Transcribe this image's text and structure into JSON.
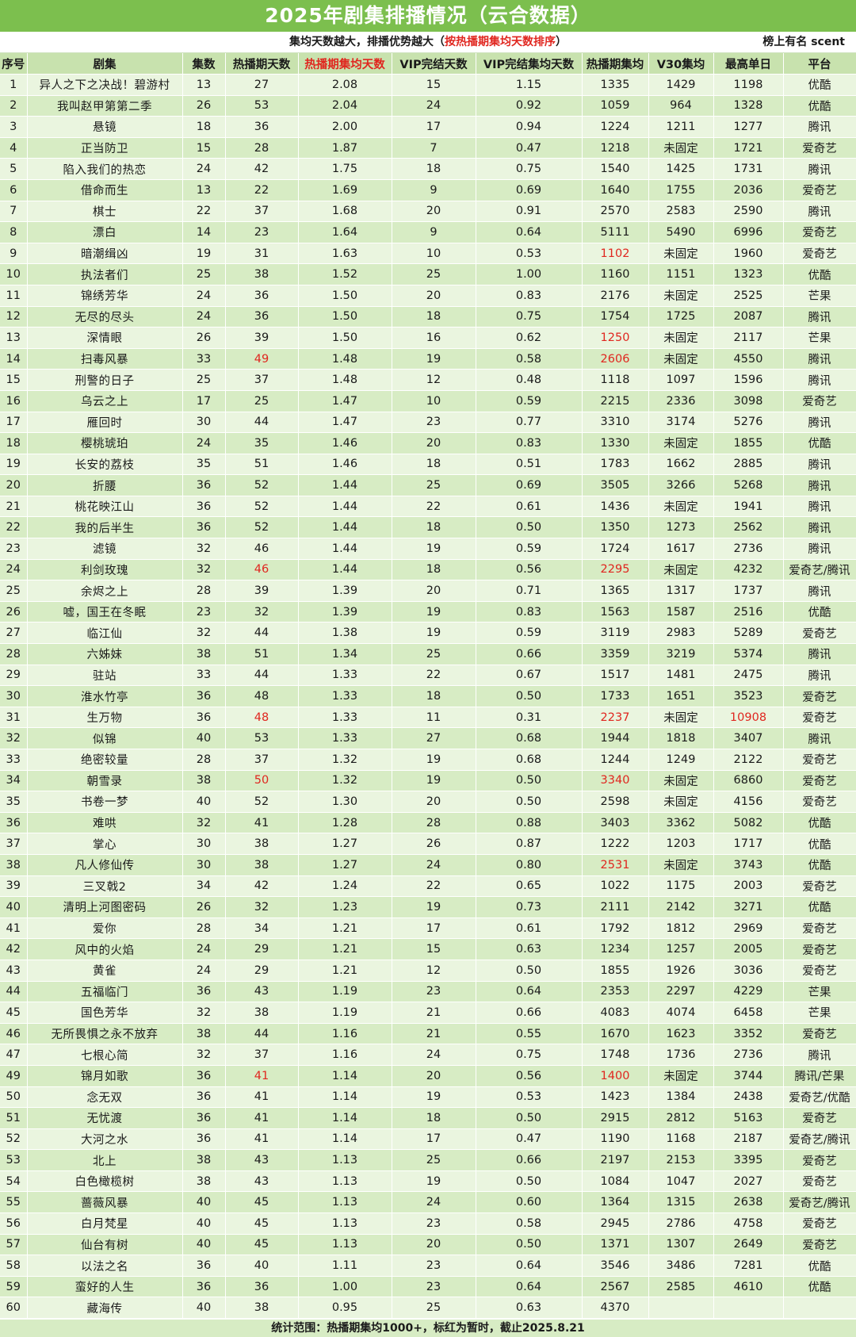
{
  "title": "2025年剧集排播情况（云合数据）",
  "subtitle": {
    "part1": "集均天数越大，排播优势越大（",
    "highlight": "按热播期集均天数排序",
    "part2": "）",
    "right": "榜上有名   scent"
  },
  "headers": [
    "序号",
    "剧集",
    "集数",
    "热播期天数",
    "热播期集均天数",
    "VIP完结天数",
    "VIP完结集均天数",
    "热播期集均",
    "V30集均",
    "最高单日",
    "平台"
  ],
  "highlight_header_index": 4,
  "rows": [
    {
      "c": [
        "1",
        "异人之下之决战！碧游村",
        "13",
        "27",
        "2.08",
        "15",
        "1.15",
        "1335",
        "1429",
        "1198",
        "优酷"
      ]
    },
    {
      "c": [
        "2",
        "我叫赵甲第第二季",
        "26",
        "53",
        "2.04",
        "24",
        "0.92",
        "1059",
        "964",
        "1328",
        "优酷"
      ]
    },
    {
      "c": [
        "3",
        "悬镜",
        "18",
        "36",
        "2.00",
        "17",
        "0.94",
        "1224",
        "1211",
        "1277",
        "腾讯"
      ]
    },
    {
      "c": [
        "4",
        "正当防卫",
        "15",
        "28",
        "1.87",
        "7",
        "0.47",
        "1218",
        "未固定",
        "1721",
        "爱奇艺"
      ]
    },
    {
      "c": [
        "5",
        "陷入我们的热恋",
        "24",
        "42",
        "1.75",
        "18",
        "0.75",
        "1540",
        "1425",
        "1731",
        "腾讯"
      ]
    },
    {
      "c": [
        "6",
        "借命而生",
        "13",
        "22",
        "1.69",
        "9",
        "0.69",
        "1640",
        "1755",
        "2036",
        "爱奇艺"
      ]
    },
    {
      "c": [
        "7",
        "棋士",
        "22",
        "37",
        "1.68",
        "20",
        "0.91",
        "2570",
        "2583",
        "2590",
        "腾讯"
      ]
    },
    {
      "c": [
        "8",
        "漂白",
        "14",
        "23",
        "1.64",
        "9",
        "0.64",
        "5111",
        "5490",
        "6996",
        "爱奇艺"
      ]
    },
    {
      "c": [
        "9",
        "暗潮缉凶",
        "19",
        "31",
        "1.63",
        "10",
        "0.53",
        "1102",
        "未固定",
        "1960",
        "爱奇艺"
      ],
      "red": [
        7
      ]
    },
    {
      "c": [
        "10",
        "执法者们",
        "25",
        "38",
        "1.52",
        "25",
        "1.00",
        "1160",
        "1151",
        "1323",
        "优酷"
      ]
    },
    {
      "c": [
        "11",
        "锦绣芳华",
        "24",
        "36",
        "1.50",
        "20",
        "0.83",
        "2176",
        "未固定",
        "2525",
        "芒果"
      ]
    },
    {
      "c": [
        "12",
        "无尽的尽头",
        "24",
        "36",
        "1.50",
        "18",
        "0.75",
        "1754",
        "1725",
        "2087",
        "腾讯"
      ]
    },
    {
      "c": [
        "13",
        "深情眼",
        "26",
        "39",
        "1.50",
        "16",
        "0.62",
        "1250",
        "未固定",
        "2117",
        "芒果"
      ],
      "red": [
        7
      ]
    },
    {
      "c": [
        "14",
        "扫毒风暴",
        "33",
        "49",
        "1.48",
        "19",
        "0.58",
        "2606",
        "未固定",
        "4550",
        "腾讯"
      ],
      "red": [
        3,
        7
      ]
    },
    {
      "c": [
        "15",
        "刑警的日子",
        "25",
        "37",
        "1.48",
        "12",
        "0.48",
        "1118",
        "1097",
        "1596",
        "腾讯"
      ]
    },
    {
      "c": [
        "16",
        "乌云之上",
        "17",
        "25",
        "1.47",
        "10",
        "0.59",
        "2215",
        "2336",
        "3098",
        "爱奇艺"
      ]
    },
    {
      "c": [
        "17",
        "雁回时",
        "30",
        "44",
        "1.47",
        "23",
        "0.77",
        "3310",
        "3174",
        "5276",
        "腾讯"
      ]
    },
    {
      "c": [
        "18",
        "樱桃琥珀",
        "24",
        "35",
        "1.46",
        "20",
        "0.83",
        "1330",
        "未固定",
        "1855",
        "优酷"
      ]
    },
    {
      "c": [
        "19",
        "长安的荔枝",
        "35",
        "51",
        "1.46",
        "18",
        "0.51",
        "1783",
        "1662",
        "2885",
        "腾讯"
      ]
    },
    {
      "c": [
        "20",
        "折腰",
        "36",
        "52",
        "1.44",
        "25",
        "0.69",
        "3505",
        "3266",
        "5268",
        "腾讯"
      ]
    },
    {
      "c": [
        "21",
        "桃花映江山",
        "36",
        "52",
        "1.44",
        "22",
        "0.61",
        "1436",
        "未固定",
        "1941",
        "腾讯"
      ]
    },
    {
      "c": [
        "22",
        "我的后半生",
        "36",
        "52",
        "1.44",
        "18",
        "0.50",
        "1350",
        "1273",
        "2562",
        "腾讯"
      ]
    },
    {
      "c": [
        "23",
        "滤镜",
        "32",
        "46",
        "1.44",
        "19",
        "0.59",
        "1724",
        "1617",
        "2736",
        "腾讯"
      ]
    },
    {
      "c": [
        "24",
        "利剑玫瑰",
        "32",
        "46",
        "1.44",
        "18",
        "0.56",
        "2295",
        "未固定",
        "4232",
        "爱奇艺/腾讯"
      ],
      "red": [
        3,
        7
      ]
    },
    {
      "c": [
        "25",
        "余烬之上",
        "28",
        "39",
        "1.39",
        "20",
        "0.71",
        "1365",
        "1317",
        "1737",
        "腾讯"
      ]
    },
    {
      "c": [
        "26",
        "嘘，国王在冬眠",
        "23",
        "32",
        "1.39",
        "19",
        "0.83",
        "1563",
        "1587",
        "2516",
        "优酷"
      ]
    },
    {
      "c": [
        "27",
        "临江仙",
        "32",
        "44",
        "1.38",
        "19",
        "0.59",
        "3119",
        "2983",
        "5289",
        "爱奇艺"
      ]
    },
    {
      "c": [
        "28",
        "六姊妹",
        "38",
        "51",
        "1.34",
        "25",
        "0.66",
        "3359",
        "3219",
        "5374",
        "腾讯"
      ]
    },
    {
      "c": [
        "29",
        "驻站",
        "33",
        "44",
        "1.33",
        "22",
        "0.67",
        "1517",
        "1481",
        "2475",
        "腾讯"
      ]
    },
    {
      "c": [
        "30",
        "淮水竹亭",
        "36",
        "48",
        "1.33",
        "18",
        "0.50",
        "1733",
        "1651",
        "3523",
        "爱奇艺"
      ]
    },
    {
      "c": [
        "31",
        "生万物",
        "36",
        "48",
        "1.33",
        "11",
        "0.31",
        "2237",
        "未固定",
        "10908",
        "爱奇艺"
      ],
      "red": [
        3,
        7,
        9
      ]
    },
    {
      "c": [
        "32",
        "似锦",
        "40",
        "53",
        "1.33",
        "27",
        "0.68",
        "1944",
        "1818",
        "3407",
        "腾讯"
      ]
    },
    {
      "c": [
        "33",
        "绝密较量",
        "28",
        "37",
        "1.32",
        "19",
        "0.68",
        "1244",
        "1249",
        "2122",
        "爱奇艺"
      ]
    },
    {
      "c": [
        "34",
        "朝雪录",
        "38",
        "50",
        "1.32",
        "19",
        "0.50",
        "3340",
        "未固定",
        "6860",
        "爱奇艺"
      ],
      "red": [
        3,
        7
      ]
    },
    {
      "c": [
        "35",
        "书卷一梦",
        "40",
        "52",
        "1.30",
        "20",
        "0.50",
        "2598",
        "未固定",
        "4156",
        "爱奇艺"
      ]
    },
    {
      "c": [
        "36",
        "难哄",
        "32",
        "41",
        "1.28",
        "28",
        "0.88",
        "3403",
        "3362",
        "5082",
        "优酷"
      ]
    },
    {
      "c": [
        "37",
        "掌心",
        "30",
        "38",
        "1.27",
        "26",
        "0.87",
        "1222",
        "1203",
        "1717",
        "优酷"
      ]
    },
    {
      "c": [
        "38",
        "凡人修仙传",
        "30",
        "38",
        "1.27",
        "24",
        "0.80",
        "2531",
        "未固定",
        "3743",
        "优酷"
      ],
      "red": [
        7
      ]
    },
    {
      "c": [
        "39",
        "三叉戟2",
        "34",
        "42",
        "1.24",
        "22",
        "0.65",
        "1022",
        "1175",
        "2003",
        "爱奇艺"
      ]
    },
    {
      "c": [
        "40",
        "清明上河图密码",
        "26",
        "32",
        "1.23",
        "19",
        "0.73",
        "2111",
        "2142",
        "3271",
        "优酷"
      ]
    },
    {
      "c": [
        "41",
        "爱你",
        "28",
        "34",
        "1.21",
        "17",
        "0.61",
        "1792",
        "1812",
        "2969",
        "爱奇艺"
      ]
    },
    {
      "c": [
        "42",
        "风中的火焰",
        "24",
        "29",
        "1.21",
        "15",
        "0.63",
        "1234",
        "1257",
        "2005",
        "爱奇艺"
      ]
    },
    {
      "c": [
        "43",
        "黄雀",
        "24",
        "29",
        "1.21",
        "12",
        "0.50",
        "1855",
        "1926",
        "3036",
        "爱奇艺"
      ]
    },
    {
      "c": [
        "44",
        "五福临门",
        "36",
        "43",
        "1.19",
        "23",
        "0.64",
        "2353",
        "2297",
        "4229",
        "芒果"
      ]
    },
    {
      "c": [
        "45",
        "国色芳华",
        "32",
        "38",
        "1.19",
        "21",
        "0.66",
        "4083",
        "4074",
        "6458",
        "芒果"
      ]
    },
    {
      "c": [
        "46",
        "无所畏惧之永不放弃",
        "38",
        "44",
        "1.16",
        "21",
        "0.55",
        "1670",
        "1623",
        "3352",
        "爱奇艺"
      ]
    },
    {
      "c": [
        "47",
        "七根心简",
        "32",
        "37",
        "1.16",
        "24",
        "0.75",
        "1748",
        "1736",
        "2736",
        "腾讯"
      ]
    },
    {
      "c": [
        "49",
        "锦月如歌",
        "36",
        "41",
        "1.14",
        "20",
        "0.56",
        "1400",
        "未固定",
        "3744",
        "腾讯/芒果"
      ],
      "red": [
        3,
        7
      ]
    },
    {
      "c": [
        "50",
        "念无双",
        "36",
        "41",
        "1.14",
        "19",
        "0.53",
        "1423",
        "1384",
        "2438",
        "爱奇艺/优酷"
      ]
    },
    {
      "c": [
        "51",
        "无忧渡",
        "36",
        "41",
        "1.14",
        "18",
        "0.50",
        "2915",
        "2812",
        "5163",
        "爱奇艺"
      ]
    },
    {
      "c": [
        "52",
        "大河之水",
        "36",
        "41",
        "1.14",
        "17",
        "0.47",
        "1190",
        "1168",
        "2187",
        "爱奇艺/腾讯"
      ]
    },
    {
      "c": [
        "53",
        "北上",
        "38",
        "43",
        "1.13",
        "25",
        "0.66",
        "2197",
        "2153",
        "3395",
        "爱奇艺"
      ]
    },
    {
      "c": [
        "54",
        "白色橄榄树",
        "38",
        "43",
        "1.13",
        "19",
        "0.50",
        "1084",
        "1047",
        "2027",
        "爱奇艺"
      ]
    },
    {
      "c": [
        "55",
        "蔷薇风暴",
        "40",
        "45",
        "1.13",
        "24",
        "0.60",
        "1364",
        "1315",
        "2638",
        "爱奇艺/腾讯"
      ]
    },
    {
      "c": [
        "56",
        "白月梵星",
        "40",
        "45",
        "1.13",
        "23",
        "0.58",
        "2945",
        "2786",
        "4758",
        "爱奇艺"
      ]
    },
    {
      "c": [
        "57",
        "仙台有树",
        "40",
        "45",
        "1.13",
        "20",
        "0.50",
        "1371",
        "1307",
        "2649",
        "爱奇艺"
      ]
    },
    {
      "c": [
        "58",
        "以法之名",
        "36",
        "40",
        "1.11",
        "23",
        "0.64",
        "3546",
        "3486",
        "7281",
        "优酷"
      ]
    },
    {
      "c": [
        "59",
        "蛮好的人生",
        "36",
        "36",
        "1.00",
        "23",
        "0.64",
        "2567",
        "2585",
        "4610",
        "优酷"
      ]
    },
    {
      "c": [
        "60",
        "藏海传",
        "40",
        "38",
        "0.95",
        "25",
        "0.63",
        "4370",
        "",
        "",
        ""
      ]
    }
  ],
  "footer": "统计范围：热播期集均1000+，标红为暂时，截止2025.8.21",
  "colors": {
    "title_bg": "#7cbf4e",
    "header_bg": "#c8e2ae",
    "row_light": "#eaf5df",
    "row_dark": "#d7ecc4",
    "red": "#e0261f"
  }
}
